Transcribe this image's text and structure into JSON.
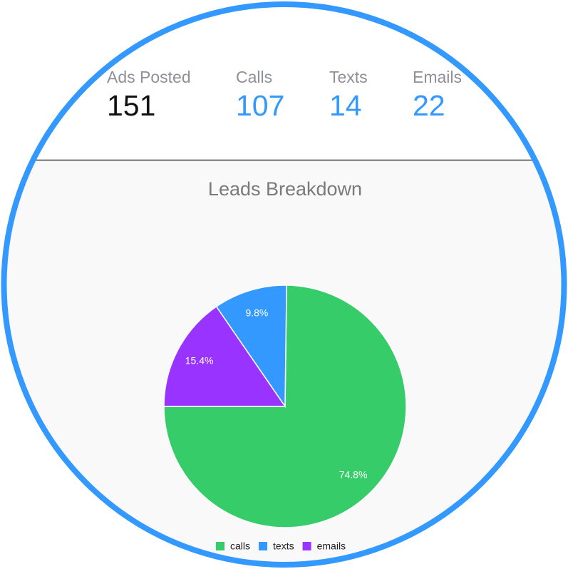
{
  "stats": [
    {
      "label": "Ads Posted",
      "value": 151,
      "color": "#111111"
    },
    {
      "label": "Calls",
      "value": 107,
      "color": "#3399ff"
    },
    {
      "label": "Texts",
      "value": 14,
      "color": "#3399ff"
    },
    {
      "label": "Emails",
      "value": 22,
      "color": "#3399ff"
    }
  ],
  "chart_data": {
    "type": "pie",
    "title": "Leads Breakdown",
    "categories": [
      "calls",
      "texts",
      "emails"
    ],
    "values": [
      74.8,
      9.8,
      15.4
    ],
    "value_labels": [
      "74.8%",
      "9.8%",
      "15.4%"
    ],
    "colors": [
      "#37cc6a",
      "#3399ff",
      "#9933ff"
    ],
    "legend": "bottom"
  }
}
